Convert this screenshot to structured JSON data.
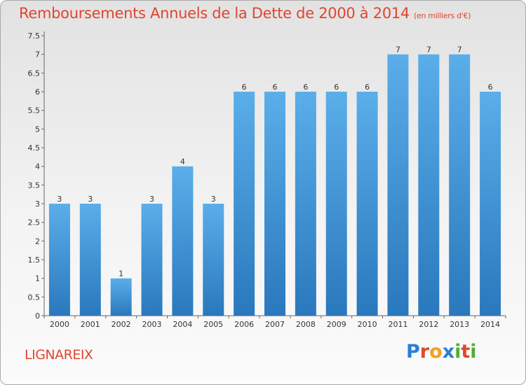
{
  "header": {
    "title": "Remboursements Annuels de la Dette de 2000 à 2014",
    "unit": "(en milliers d'€)"
  },
  "footer": {
    "commune": "LIGNAREIX",
    "logo_letters": [
      {
        "ch": "P",
        "color": "#2a7fd4"
      },
      {
        "ch": "r",
        "color": "#e04a2a"
      },
      {
        "ch": "o",
        "color": "#f0a020"
      },
      {
        "ch": "x",
        "color": "#2a7fd4"
      },
      {
        "ch": "i",
        "color": "#4fb030"
      },
      {
        "ch": "t",
        "color": "#e04a2a"
      },
      {
        "ch": "i",
        "color": "#4fb030"
      }
    ]
  },
  "chart_data": {
    "type": "bar",
    "title": "Remboursements Annuels de la Dette de 2000 à 2014",
    "subtitle": "(en milliers d'€)",
    "categories": [
      "2000",
      "2001",
      "2002",
      "2003",
      "2004",
      "2005",
      "2006",
      "2007",
      "2008",
      "2009",
      "2010",
      "2011",
      "2012",
      "2013",
      "2014"
    ],
    "values": [
      3,
      3,
      1,
      3,
      4,
      3,
      6,
      6,
      6,
      6,
      6,
      7,
      7,
      7,
      6
    ],
    "ylim": [
      0,
      7.5
    ],
    "yticks": [
      "0",
      "0.5",
      "1",
      "1.5",
      "2",
      "2.5",
      "3",
      "3.5",
      "4",
      "4.5",
      "5",
      "5.5",
      "6",
      "6.5",
      "7",
      "7.5"
    ],
    "grid": false,
    "colors": {
      "bar_top": "#5aaee9",
      "bar_bottom": "#2a78bd",
      "title": "#e0452f"
    }
  }
}
